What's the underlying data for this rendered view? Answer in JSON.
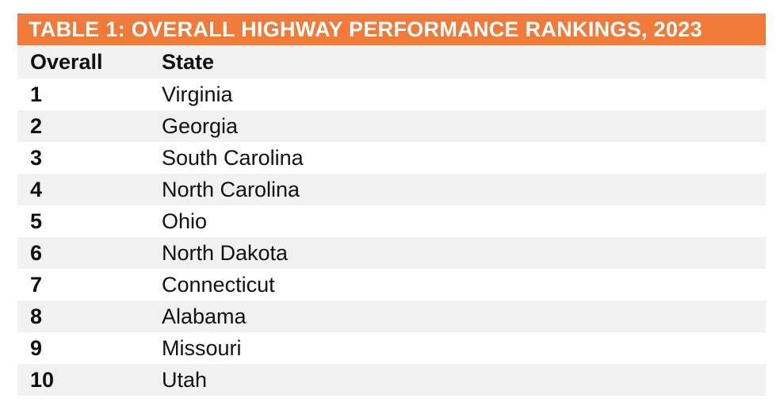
{
  "table": {
    "title": "TABLE 1: OVERALL HIGHWAY PERFORMANCE RANKINGS, 2023",
    "headers": {
      "rank": "Overall",
      "state": "State"
    },
    "rows": [
      {
        "rank": "1",
        "state": "Virginia"
      },
      {
        "rank": "2",
        "state": "Georgia"
      },
      {
        "rank": "3",
        "state": "South Carolina"
      },
      {
        "rank": "4",
        "state": "North Carolina"
      },
      {
        "rank": "5",
        "state": "Ohio"
      },
      {
        "rank": "6",
        "state": "North Dakota"
      },
      {
        "rank": "7",
        "state": "Connecticut"
      },
      {
        "rank": "8",
        "state": "Alabama"
      },
      {
        "rank": "9",
        "state": "Missouri"
      },
      {
        "rank": "10",
        "state": "Utah"
      }
    ],
    "colors": {
      "title_bg": "#f07a3a",
      "title_text": "#ffffff",
      "stripe": "#f1f1f1"
    }
  }
}
